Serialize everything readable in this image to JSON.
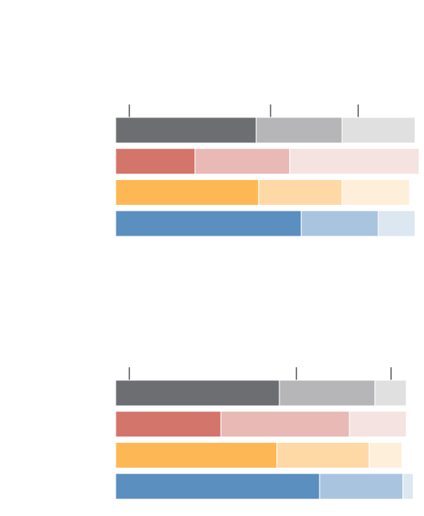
{
  "chart_data": [
    {
      "type": "bar",
      "orientation": "horizontal",
      "stacked": true,
      "categories": [
        null,
        null,
        null,
        null
      ],
      "xlim": [
        0,
        100
      ],
      "xticks": [
        4.5,
        50.9,
        79.7
      ],
      "series": [
        {
          "colors": [
            "#6d6e71",
            "#d4756b",
            "#fdb855",
            "#5a8fbf"
          ],
          "values": [
            46.2,
            26.1,
            47.0,
            61.0
          ]
        },
        {
          "colors": [
            "#b6b6b8",
            "#e8b9b5",
            "#fed9a6",
            "#a9c4de"
          ],
          "values": [
            28.2,
            31.1,
            27.4,
            25.3
          ]
        },
        {
          "colors": [
            "#e0e0e0",
            "#f5e3e1",
            "#feefdb",
            "#dce7f1"
          ],
          "values": [
            24.0,
            42.5,
            22.2,
            12.1
          ]
        }
      ]
    },
    {
      "type": "bar",
      "orientation": "horizontal",
      "stacked": true,
      "categories": [
        null,
        null,
        null,
        null
      ],
      "xlim": [
        0,
        100
      ],
      "xticks": [
        4.5,
        59.4,
        90.5
      ],
      "series": [
        {
          "colors": [
            "#6d6e71",
            "#d4756b",
            "#fdb855",
            "#5a8fbf"
          ],
          "values": [
            53.8,
            34.6,
            53.0,
            67.0
          ]
        },
        {
          "colors": [
            "#b6b6b8",
            "#e8b9b5",
            "#fed9a6",
            "#a9c4de"
          ],
          "values": [
            31.4,
            42.2,
            30.3,
            27.4
          ]
        },
        {
          "colors": [
            "#e0e0e0",
            "#f5e3e1",
            "#feefdb",
            "#dce7f1"
          ],
          "values": [
            10.3,
            18.7,
            10.8,
            3.4
          ]
        }
      ]
    }
  ]
}
